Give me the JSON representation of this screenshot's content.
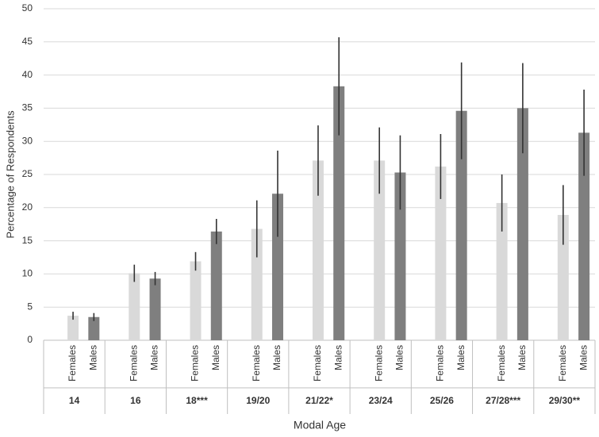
{
  "chart_data": {
    "type": "bar",
    "y_label": "Percentage of Respondents",
    "x_label": "Modal Age",
    "categories": [
      "14",
      "16",
      "18***",
      "19/20",
      "21/22*",
      "23/24",
      "25/26",
      "27/28***",
      "29/30**"
    ],
    "series": [
      {
        "name": "Females",
        "color": "#d9d9d9",
        "values": [
          3.7,
          10.1,
          11.9,
          16.8,
          27.1,
          27.1,
          26.2,
          20.7,
          18.9
        ],
        "errors": [
          0.6,
          1.3,
          1.4,
          4.3,
          5.3,
          5.0,
          4.9,
          4.3,
          4.5
        ]
      },
      {
        "name": "Males",
        "color": "#7f7f7f",
        "values": [
          3.5,
          9.3,
          16.4,
          22.1,
          38.3,
          25.3,
          34.6,
          35.0,
          31.3
        ],
        "errors": [
          0.6,
          1.0,
          1.9,
          6.5,
          7.4,
          5.6,
          7.3,
          6.8,
          6.5
        ]
      }
    ],
    "ylim": [
      0,
      50
    ],
    "yticks": [
      0,
      5,
      10,
      15,
      20,
      25,
      30,
      35,
      40,
      45,
      50
    ],
    "grid": true
  }
}
